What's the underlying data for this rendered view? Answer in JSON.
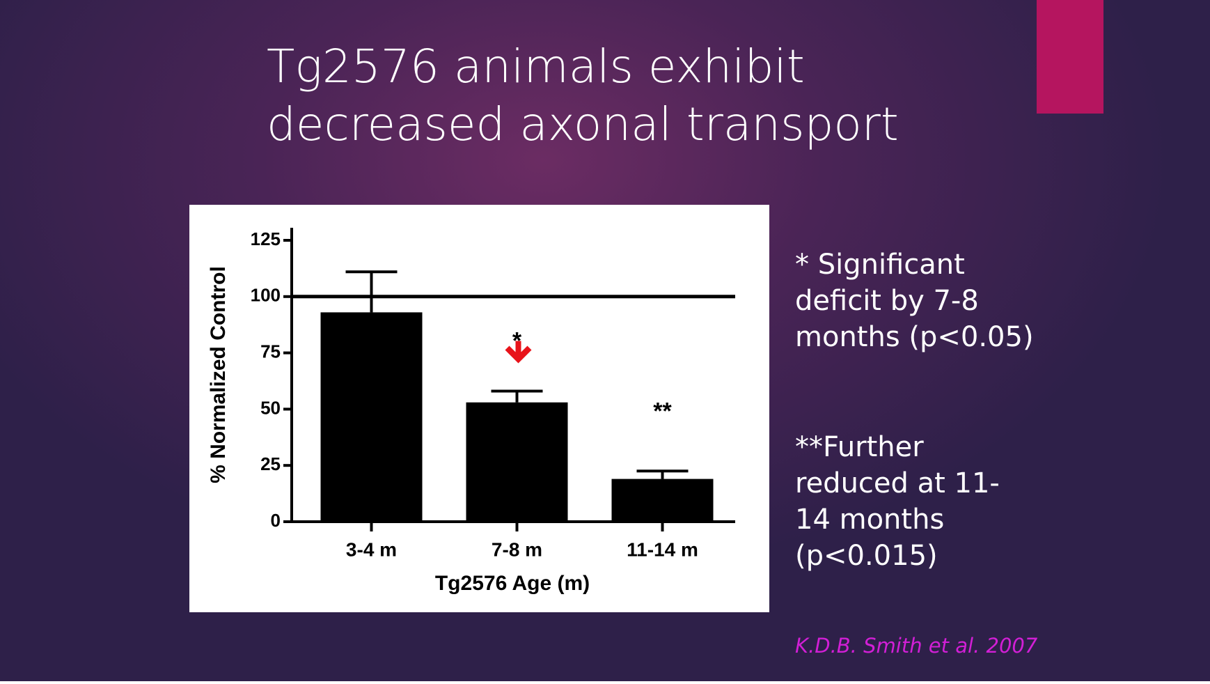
{
  "slide": {
    "title_lines": [
      "Tg2576 animals exhibit",
      "decreased axonal transport"
    ],
    "notes": [
      [
        "* Significant",
        "deficit by 7-8",
        "months (p<0.05)"
      ],
      [
        "**Further",
        "reduced at 11-",
        "14 months",
        "(p<0.015)"
      ]
    ],
    "citation": "K.D.B. Smith et al. 2007"
  },
  "chart_data": {
    "type": "bar",
    "y_label": "% Normalized Control",
    "x_label": "Tg2576 Age (m)",
    "categories": [
      "3-4 m",
      "7-8 m",
      "11-14 m"
    ],
    "values": [
      93,
      53,
      19
    ],
    "errors": [
      18,
      5,
      3.5
    ],
    "color": "#000000",
    "ylim": [
      0,
      125
    ],
    "yticks": [
      0,
      25,
      50,
      75,
      100,
      125
    ],
    "reference_line": 100,
    "annotations": [
      {
        "text": "*",
        "category": "7-8 m",
        "arrow_color": "#e8131a"
      },
      {
        "text": "**",
        "category": "11-14 m"
      }
    ]
  }
}
